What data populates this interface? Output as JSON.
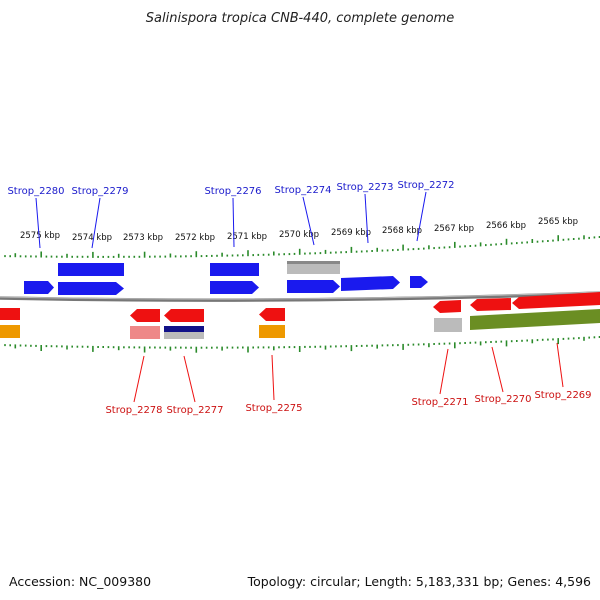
{
  "title": "Salinispora tropica CNB-440, complete genome",
  "footer": {
    "accession": "Accession: NC_009380",
    "topology": "Topology: circular; Length: 5,183,331 bp; Genes: 4,596"
  },
  "colors": {
    "forward_cds": "#1a1aee",
    "reverse_cds": "#ee1111",
    "grey_feature": "#bbbbbb",
    "orange_feature": "#ee9900",
    "pink_feature": "#ee8888",
    "navy_feature": "#111188",
    "olive_feature": "#6b8e23",
    "ticks": "#2a8a2a",
    "backbone": "#777777",
    "forward_label": "#1a1acc",
    "reverse_label": "#cc1111"
  },
  "scale_labels": [
    "2575 kbp",
    "2574 kbp",
    "2573 kbp",
    "2572 kbp",
    "2571 kbp",
    "2570 kbp",
    "2569 kbp",
    "2568 kbp",
    "2567 kbp",
    "2566 kbp",
    "2565 kbp"
  ],
  "forward_labels": [
    "Strop_2280",
    "Strop_2279",
    "Strop_2276",
    "Strop_2274",
    "Strop_2273",
    "Strop_2272"
  ],
  "reverse_labels": [
    "Strop_2278",
    "Strop_2277",
    "Strop_2275",
    "Strop_2271",
    "Strop_2270",
    "Strop_2269"
  ]
}
